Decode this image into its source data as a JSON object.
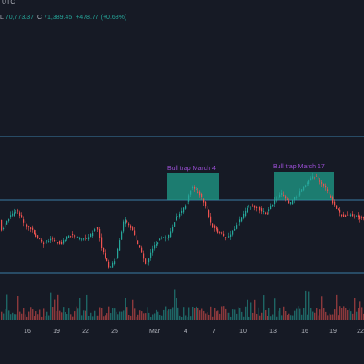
{
  "header": {
    "timezone": "UTC",
    "low_label": "L",
    "low_value": "70,773.37",
    "close_label": "C",
    "close_value": "71,389.45",
    "change": "+478.77 (+0.68%)"
  },
  "colors": {
    "background": "#161a25",
    "up": "#26a69a",
    "down": "#ef5350",
    "level_line": "#3a7ca5",
    "trap_zone": "#1f9e8a",
    "trap_text": "#9c4fd6",
    "text": "#b2b5be"
  },
  "annotations": [
    {
      "label": "Bull trap March 4"
    },
    {
      "label": "Bull trap March 17"
    }
  ],
  "x_axis": {
    "ticks": [
      "16",
      "19",
      "22",
      "25",
      "Mar",
      "4",
      "7",
      "10",
      "13",
      "16",
      "19",
      "22"
    ]
  }
}
